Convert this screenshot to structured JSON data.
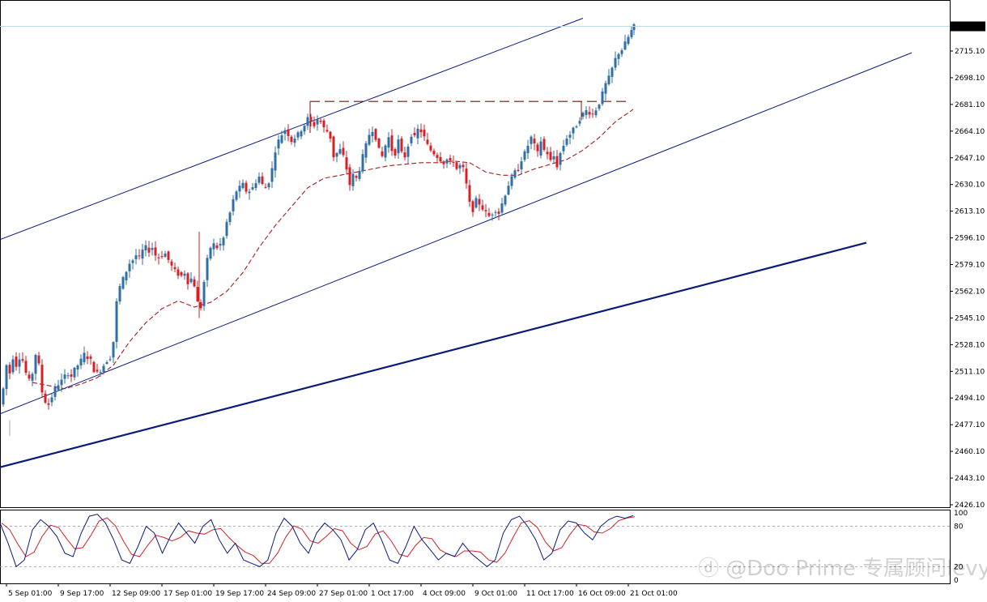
{
  "chart_data": {
    "type": "candlestick",
    "instrument_last_price": "2730.84",
    "price_axis": {
      "ticks": [
        "2715.10",
        "2698.10",
        "2681.10",
        "2664.10",
        "2647.10",
        "2630.10",
        "2613.10",
        "2596.10",
        "2579.10",
        "2562.10",
        "2545.10",
        "2528.10",
        "2511.10",
        "2494.10",
        "2477.10",
        "2460.10",
        "2443.10",
        "2426.10"
      ],
      "ylim": [
        2418,
        2738
      ]
    },
    "time_axis": {
      "ticks": [
        "5 Sep 01:00",
        "9 Sep 17:00",
        "12 Sep 09:00",
        "17 Sep 01:00",
        "19 Sep 17:00",
        "24 Sep 09:00",
        "27 Sep 01:00",
        "1 Oct 17:00",
        "4 Oct 09:00",
        "9 Oct 01:00",
        "11 Oct 17:00",
        "16 Oct 09:00",
        "21 Oct 01:00"
      ]
    },
    "colors": {
      "bull": "#2f6fa8",
      "bear": "#d62027",
      "channel": "#0a1a7a",
      "ma": "#a81c1c",
      "stoch_main": "#0a1a7a",
      "stoch_signal": "#d62027",
      "last_price_line": "#b8dbe8"
    },
    "price_path": [
      [
        0,
        2490
      ],
      [
        4,
        2500
      ],
      [
        8,
        2515
      ],
      [
        12,
        2510
      ],
      [
        16,
        2520
      ],
      [
        20,
        2515
      ],
      [
        24,
        2520
      ],
      [
        28,
        2518
      ],
      [
        32,
        2510
      ],
      [
        36,
        2505
      ],
      [
        40,
        2510
      ],
      [
        44,
        2522
      ],
      [
        48,
        2515
      ],
      [
        52,
        2498
      ],
      [
        56,
        2492
      ],
      [
        60,
        2490
      ],
      [
        64,
        2495
      ],
      [
        68,
        2500
      ],
      [
        72,
        2503
      ],
      [
        76,
        2505
      ],
      [
        80,
        2508
      ],
      [
        84,
        2510
      ],
      [
        88,
        2508
      ],
      [
        92,
        2512
      ],
      [
        96,
        2515
      ],
      [
        100,
        2518
      ],
      [
        104,
        2522
      ],
      [
        108,
        2520
      ],
      [
        112,
        2518
      ],
      [
        116,
        2512
      ],
      [
        120,
        2510
      ],
      [
        124,
        2512
      ],
      [
        128,
        2515
      ],
      [
        132,
        2518
      ],
      [
        136,
        2520
      ],
      [
        140,
        2530
      ],
      [
        144,
        2555
      ],
      [
        148,
        2565
      ],
      [
        152,
        2570
      ],
      [
        156,
        2575
      ],
      [
        160,
        2580
      ],
      [
        164,
        2582
      ],
      [
        168,
        2585
      ],
      [
        172,
        2583
      ],
      [
        176,
        2588
      ],
      [
        180,
        2590
      ],
      [
        184,
        2588
      ],
      [
        188,
        2590
      ],
      [
        192,
        2585
      ],
      [
        196,
        2584
      ],
      [
        200,
        2585
      ],
      [
        204,
        2586
      ],
      [
        208,
        2582
      ],
      [
        212,
        2578
      ],
      [
        216,
        2575
      ],
      [
        220,
        2573
      ],
      [
        224,
        2572
      ],
      [
        228,
        2574
      ],
      [
        232,
        2568
      ],
      [
        236,
        2570
      ],
      [
        240,
        2566
      ],
      [
        244,
        2555
      ],
      [
        248,
        2552
      ],
      [
        252,
        2568
      ],
      [
        256,
        2582
      ],
      [
        260,
        2590
      ],
      [
        264,
        2592
      ],
      [
        268,
        2590
      ],
      [
        272,
        2592
      ],
      [
        276,
        2596
      ],
      [
        280,
        2606
      ],
      [
        284,
        2612
      ],
      [
        288,
        2620
      ],
      [
        292,
        2626
      ],
      [
        296,
        2628
      ],
      [
        300,
        2630
      ],
      [
        304,
        2626
      ],
      [
        308,
        2626
      ],
      [
        312,
        2628
      ],
      [
        316,
        2632
      ],
      [
        320,
        2635
      ],
      [
        324,
        2630
      ],
      [
        328,
        2628
      ],
      [
        332,
        2632
      ],
      [
        336,
        2640
      ],
      [
        340,
        2652
      ],
      [
        344,
        2658
      ],
      [
        348,
        2662
      ],
      [
        352,
        2665
      ],
      [
        356,
        2662
      ],
      [
        360,
        2658
      ],
      [
        364,
        2660
      ],
      [
        368,
        2662
      ],
      [
        372,
        2665
      ],
      [
        376,
        2668
      ],
      [
        380,
        2672
      ],
      [
        384,
        2670
      ],
      [
        388,
        2668
      ],
      [
        392,
        2672
      ],
      [
        396,
        2670
      ],
      [
        400,
        2666
      ],
      [
        404,
        2664
      ],
      [
        408,
        2660
      ],
      [
        412,
        2648
      ],
      [
        416,
        2650
      ],
      [
        420,
        2652
      ],
      [
        424,
        2648
      ],
      [
        428,
        2640
      ],
      [
        432,
        2630
      ],
      [
        436,
        2636
      ],
      [
        440,
        2634
      ],
      [
        444,
        2640
      ],
      [
        448,
        2648
      ],
      [
        452,
        2655
      ],
      [
        456,
        2662
      ],
      [
        460,
        2665
      ],
      [
        464,
        2660
      ],
      [
        468,
        2652
      ],
      [
        472,
        2648
      ],
      [
        476,
        2655
      ],
      [
        480,
        2660
      ],
      [
        484,
        2652
      ],
      [
        488,
        2650
      ],
      [
        492,
        2658
      ],
      [
        496,
        2650
      ],
      [
        500,
        2648
      ],
      [
        504,
        2655
      ],
      [
        508,
        2662
      ],
      [
        512,
        2660
      ],
      [
        516,
        2665
      ],
      [
        520,
        2664
      ],
      [
        524,
        2660
      ],
      [
        528,
        2655
      ],
      [
        532,
        2652
      ],
      [
        536,
        2650
      ],
      [
        540,
        2648
      ],
      [
        544,
        2646
      ],
      [
        548,
        2644
      ],
      [
        552,
        2646
      ],
      [
        556,
        2644
      ],
      [
        560,
        2645
      ],
      [
        564,
        2640
      ],
      [
        568,
        2642
      ],
      [
        572,
        2640
      ],
      [
        576,
        2630
      ],
      [
        580,
        2618
      ],
      [
        584,
        2614
      ],
      [
        588,
        2620
      ],
      [
        592,
        2618
      ],
      [
        596,
        2615
      ],
      [
        600,
        2612
      ],
      [
        604,
        2610
      ],
      [
        608,
        2612
      ],
      [
        612,
        2614
      ],
      [
        616,
        2612
      ],
      [
        620,
        2618
      ],
      [
        624,
        2624
      ],
      [
        628,
        2630
      ],
      [
        632,
        2634
      ],
      [
        636,
        2638
      ],
      [
        640,
        2640
      ],
      [
        644,
        2646
      ],
      [
        648,
        2650
      ],
      [
        652,
        2655
      ],
      [
        656,
        2660
      ],
      [
        660,
        2655
      ],
      [
        664,
        2650
      ],
      [
        668,
        2658
      ],
      [
        672,
        2652
      ],
      [
        676,
        2650
      ],
      [
        680,
        2645
      ],
      [
        684,
        2648
      ],
      [
        688,
        2642
      ],
      [
        692,
        2650
      ],
      [
        696,
        2655
      ],
      [
        700,
        2660
      ],
      [
        704,
        2662
      ],
      [
        708,
        2665
      ],
      [
        712,
        2668
      ],
      [
        716,
        2672
      ],
      [
        720,
        2675
      ],
      [
        724,
        2677
      ],
      [
        728,
        2676
      ],
      [
        732,
        2675
      ],
      [
        736,
        2678
      ],
      [
        740,
        2682
      ],
      [
        744,
        2688
      ],
      [
        748,
        2694
      ],
      [
        752,
        2698
      ],
      [
        756,
        2704
      ],
      [
        760,
        2710
      ],
      [
        764,
        2714
      ],
      [
        768,
        2716
      ],
      [
        772,
        2720
      ],
      [
        776,
        2724
      ],
      [
        780,
        2728
      ],
      [
        783,
        2730.8
      ]
    ],
    "ma_path": [
      [
        40,
        2504
      ],
      [
        60,
        2502
      ],
      [
        80,
        2500
      ],
      [
        100,
        2503
      ],
      [
        120,
        2507
      ],
      [
        140,
        2515
      ],
      [
        160,
        2530
      ],
      [
        180,
        2542
      ],
      [
        200,
        2551
      ],
      [
        220,
        2556
      ],
      [
        240,
        2552
      ],
      [
        260,
        2555
      ],
      [
        280,
        2562
      ],
      [
        300,
        2574
      ],
      [
        320,
        2590
      ],
      [
        340,
        2604
      ],
      [
        360,
        2616
      ],
      [
        380,
        2628
      ],
      [
        400,
        2634
      ],
      [
        420,
        2636
      ],
      [
        440,
        2638
      ],
      [
        460,
        2640
      ],
      [
        480,
        2642
      ],
      [
        500,
        2643
      ],
      [
        520,
        2644
      ],
      [
        540,
        2644
      ],
      [
        560,
        2645
      ],
      [
        580,
        2644
      ],
      [
        600,
        2638
      ],
      [
        620,
        2636
      ],
      [
        640,
        2636
      ],
      [
        660,
        2640
      ],
      [
        680,
        2643
      ],
      [
        700,
        2646
      ],
      [
        720,
        2652
      ],
      [
        740,
        2660
      ],
      [
        760,
        2670
      ],
      [
        782,
        2678
      ]
    ],
    "channel_upper": [
      [
        0,
        2595
      ],
      [
        720,
        2736
      ]
    ],
    "channel_lower": [
      [
        0,
        2484
      ],
      [
        1126,
        2714
      ]
    ],
    "trendline_bold": [
      [
        0,
        2450
      ],
      [
        1070,
        2593
      ]
    ],
    "resistance_level": {
      "price": 2683,
      "x_range": [
        383,
        774
      ]
    },
    "stochastic": {
      "scale_labels": [
        "100",
        "80",
        "20",
        "0"
      ],
      "main": [
        85,
        55,
        20,
        30,
        75,
        90,
        80,
        65,
        40,
        35,
        70,
        95,
        98,
        85,
        60,
        30,
        25,
        50,
        80,
        70,
        40,
        65,
        85,
        70,
        55,
        80,
        90,
        60,
        40,
        55,
        30,
        25,
        20,
        30,
        70,
        92,
        80,
        55,
        40,
        70,
        85,
        75,
        60,
        30,
        45,
        75,
        85,
        60,
        30,
        25,
        50,
        80,
        60,
        45,
        30,
        40,
        35,
        55,
        40,
        30,
        20,
        30,
        70,
        90,
        95,
        80,
        60,
        30,
        40,
        75,
        88,
        85,
        70,
        60,
        80,
        90,
        95,
        92,
        96
      ]
    }
  }
}
